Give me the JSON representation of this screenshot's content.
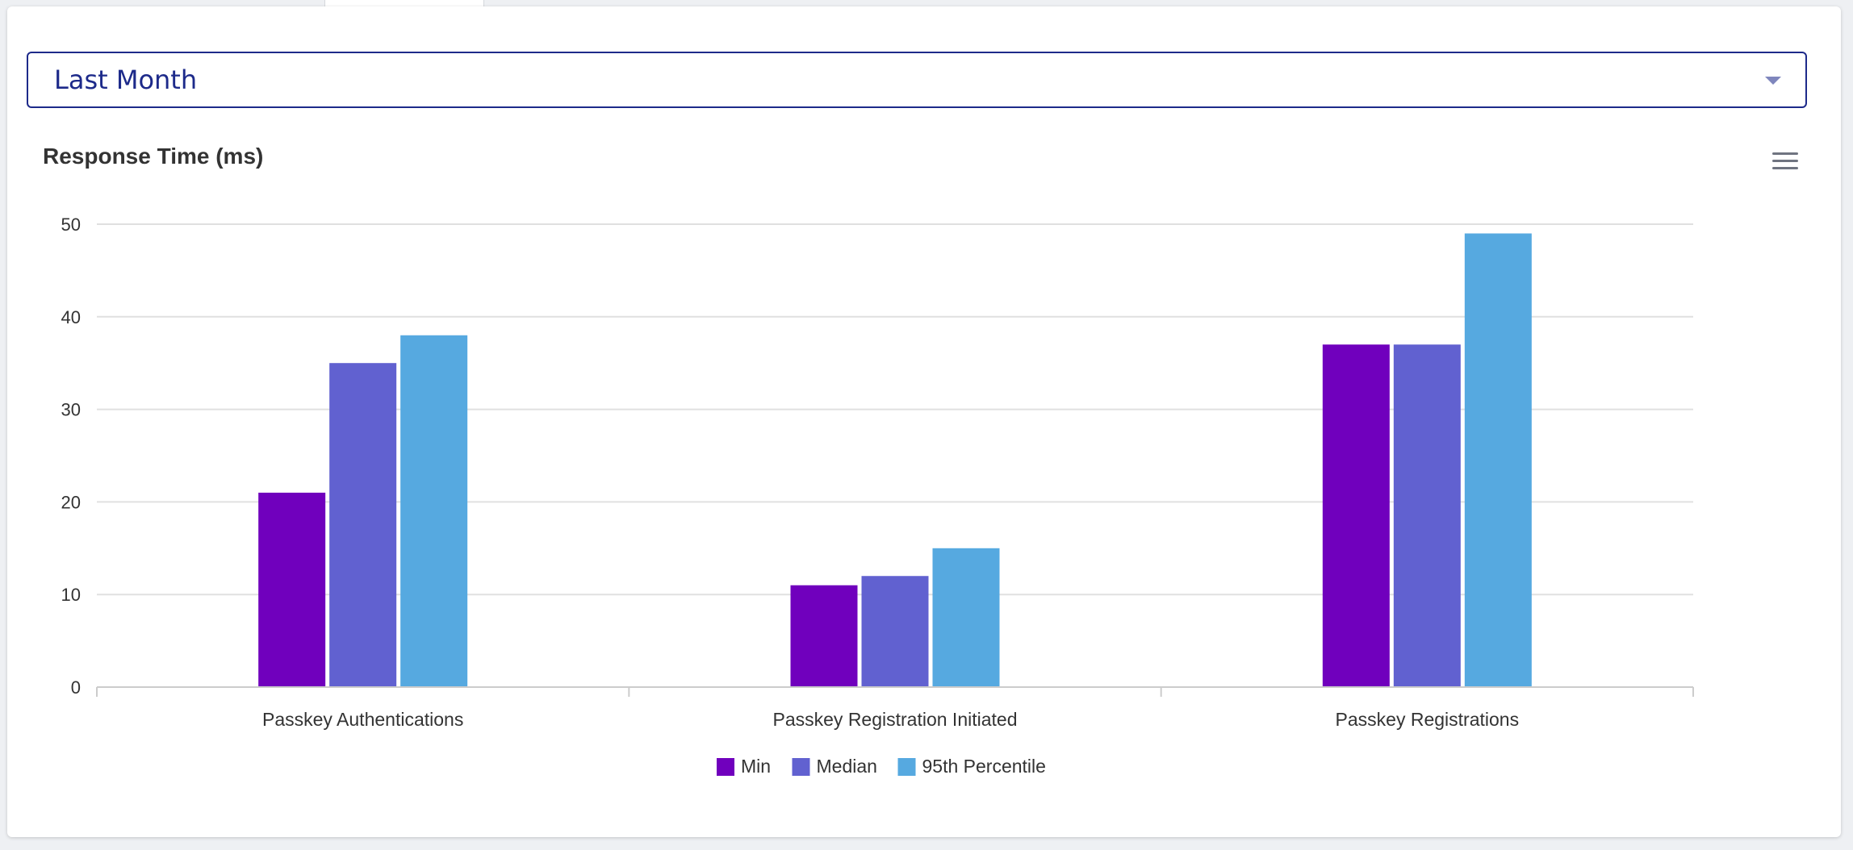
{
  "filter": {
    "selected": "Last Month"
  },
  "chart_data": {
    "type": "bar",
    "title": "Response Time (ms)",
    "xlabel": "",
    "ylabel": "",
    "ylim": [
      0,
      50
    ],
    "yticks": [
      "0",
      "10",
      "20",
      "30",
      "40",
      "50"
    ],
    "grid": true,
    "legend_position": "bottom-center",
    "categories": [
      "Passkey Authentications",
      "Passkey Registration Initiated",
      "Passkey Registrations"
    ],
    "series": [
      {
        "name": "Min",
        "color": "#7000bd",
        "values": [
          21,
          11,
          37
        ]
      },
      {
        "name": "Median",
        "color": "#6161d0",
        "values": [
          35,
          12,
          37
        ]
      },
      {
        "name": "95th Percentile",
        "color": "#56a9e0",
        "values": [
          38,
          15,
          49
        ]
      }
    ]
  },
  "icons": {
    "menu": "hamburger-menu-icon",
    "dropdown": "caret-down-icon"
  }
}
